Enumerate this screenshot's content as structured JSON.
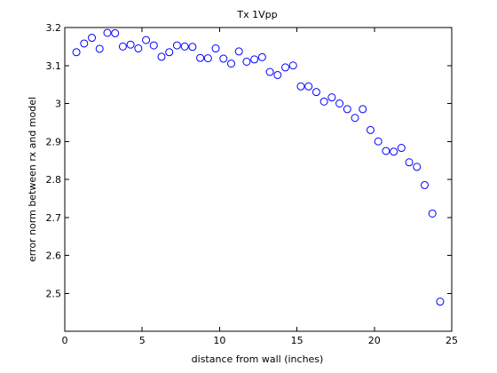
{
  "chart_data": {
    "type": "scatter",
    "title": "Tx 1Vpp",
    "xlabel": "distance from wall (inches)",
    "ylabel": "error norm between rx and model",
    "xlim": [
      0,
      25
    ],
    "ylim": [
      2.4,
      3.2
    ],
    "x_ticks": [
      0,
      5,
      10,
      15,
      20,
      25
    ],
    "y_ticks": [
      2.5,
      2.6,
      2.7,
      2.8,
      2.9,
      3.0,
      3.1,
      3.2
    ],
    "x_tick_labels": [
      "0",
      "5",
      "10",
      "15",
      "20",
      "25"
    ],
    "y_tick_labels": [
      "2.5",
      "2.6",
      "2.7",
      "2.8",
      "2.9",
      "3",
      "3.1",
      "3.2"
    ],
    "marker": "circle",
    "marker_color": "#0000ff",
    "grid": false,
    "series": [
      {
        "x": [
          0.75,
          1.25,
          1.75,
          2.25,
          2.75,
          3.25,
          3.75,
          4.25,
          4.75,
          5.25,
          5.75,
          6.25,
          6.75,
          7.25,
          7.75,
          8.25,
          8.75,
          9.25,
          9.75,
          10.25,
          10.75,
          11.25,
          11.75,
          12.25,
          12.75,
          13.25,
          13.75,
          14.25,
          14.75,
          15.25,
          15.75,
          16.25,
          16.75,
          17.25,
          17.75,
          18.25,
          18.75,
          19.25,
          19.75,
          20.25,
          20.75,
          21.25,
          21.75,
          22.25,
          22.75,
          23.25,
          23.75,
          24.25
        ],
        "y": [
          3.135,
          3.158,
          3.173,
          3.144,
          3.186,
          3.185,
          3.15,
          3.155,
          3.145,
          3.167,
          3.153,
          3.123,
          3.135,
          3.153,
          3.15,
          3.149,
          3.12,
          3.119,
          3.145,
          3.118,
          3.105,
          3.137,
          3.11,
          3.116,
          3.122,
          3.083,
          3.075,
          3.095,
          3.1,
          3.045,
          3.045,
          3.03,
          3.005,
          3.016,
          3.0,
          2.985,
          2.962,
          2.985,
          2.93,
          2.9,
          2.875,
          2.873,
          2.883,
          2.845,
          2.833,
          2.785,
          2.71,
          2.478
        ]
      }
    ]
  }
}
